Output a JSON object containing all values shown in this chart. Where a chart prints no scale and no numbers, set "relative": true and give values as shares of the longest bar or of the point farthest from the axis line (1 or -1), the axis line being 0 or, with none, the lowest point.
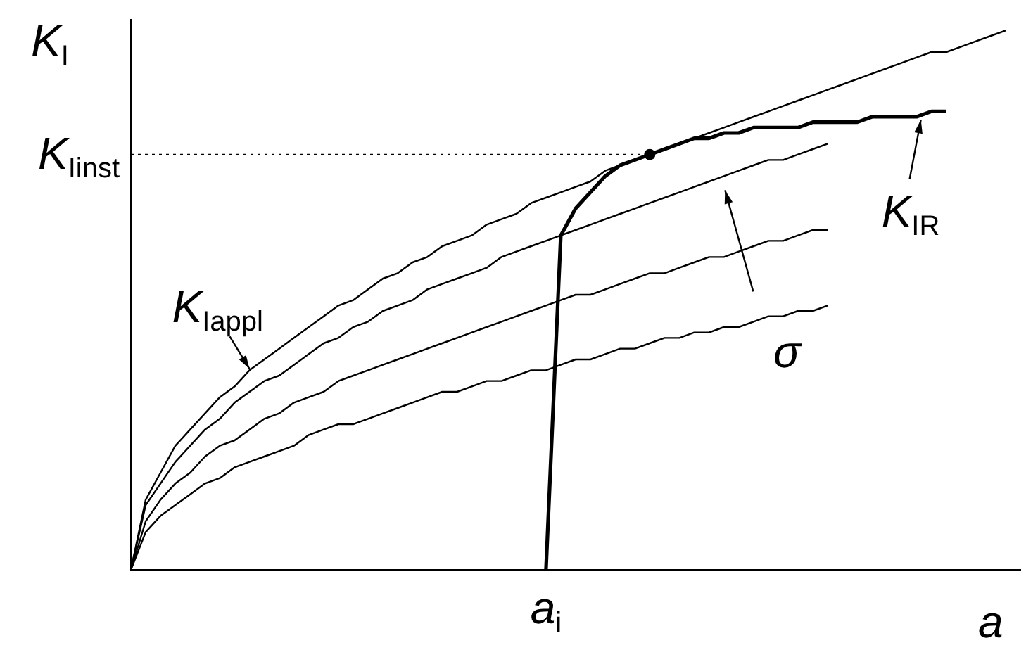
{
  "chart_data": {
    "type": "line",
    "relative": true,
    "ylabel": "K$_{I}$",
    "xlabel": "a",
    "marker": "none",
    "line_style": "solid",
    "categories": [
      null,
      null,
      null,
      null,
      null,
      null,
      null,
      null,
      null,
      null,
      null,
      null,
      null,
      null,
      null,
      null,
      null,
      null,
      null,
      null,
      null,
      null,
      null,
      null,
      null,
      null,
      null,
      null,
      null,
      null,
      null,
      null,
      null,
      null,
      null,
      null,
      null,
      null,
      null,
      null,
      null,
      null,
      null,
      null,
      null,
      null,
      null,
      null,
      null,
      null,
      null,
      null,
      null,
      null,
      null,
      null,
      null,
      null,
      null,
      null,
      null
    ],
    "series": [
      {
        "name": "K$_{Iappl}$",
        "color": "#000000",
        "values": [
          0,
          0.13,
          0.18,
          0.23,
          0.26,
          0.29,
          0.32,
          0.34,
          0.37,
          0.39,
          0.41,
          0.43,
          0.45,
          0.47,
          0.49,
          0.5,
          0.52,
          0.54,
          0.55,
          0.57,
          0.58,
          0.6,
          0.61,
          0.62,
          0.64,
          0.65,
          0.66,
          0.68,
          0.69,
          0.7,
          0.71,
          0.72,
          0.74,
          0.75,
          0.76,
          0.77,
          0.78,
          0.79,
          0.8,
          0.81,
          0.82,
          0.83,
          0.84,
          0.85,
          0.86,
          0.87,
          0.88,
          0.89,
          0.9,
          0.91,
          0.92,
          0.93,
          0.94,
          0.95,
          0.96,
          0.96,
          0.97,
          0.98,
          0.99,
          1,
          null
        ]
      },
      {
        "color": "#000000",
        "values": [
          0,
          0.12,
          0.16,
          0.2,
          0.23,
          0.26,
          0.28,
          0.31,
          0.33,
          0.35,
          0.36,
          0.38,
          0.4,
          0.42,
          0.43,
          0.45,
          0.46,
          0.48,
          0.49,
          0.5,
          0.52,
          0.53,
          0.54,
          0.55,
          0.56,
          0.58,
          0.59,
          0.6,
          0.61,
          0.62,
          0.63,
          0.64,
          0.65,
          0.66,
          0.67,
          0.68,
          0.69,
          0.7,
          0.71,
          0.72,
          0.73,
          0.74,
          0.75,
          0.76,
          0.76,
          0.77,
          0.78,
          0.79,
          null,
          null,
          null,
          null,
          null,
          null,
          null,
          null,
          null,
          null,
          null,
          null,
          null
        ]
      },
      {
        "color": "#000000",
        "values": [
          0,
          0.09,
          0.13,
          0.16,
          0.18,
          0.21,
          0.23,
          0.24,
          0.26,
          0.28,
          0.29,
          0.31,
          0.32,
          0.33,
          0.35,
          0.36,
          0.37,
          0.38,
          0.39,
          0.4,
          0.41,
          0.42,
          0.43,
          0.44,
          0.45,
          0.46,
          0.47,
          0.48,
          0.49,
          0.5,
          0.51,
          0.51,
          0.52,
          0.53,
          0.54,
          0.55,
          0.55,
          0.56,
          0.57,
          0.58,
          0.58,
          0.59,
          0.6,
          0.61,
          0.61,
          0.62,
          0.63,
          0.63,
          null,
          null,
          null,
          null,
          null,
          null,
          null,
          null,
          null,
          null,
          null,
          null,
          null
        ]
      },
      {
        "color": "#000000",
        "values": [
          0,
          0.07,
          0.1,
          0.12,
          0.14,
          0.16,
          0.17,
          0.19,
          0.2,
          0.21,
          0.22,
          0.23,
          0.25,
          0.26,
          0.27,
          0.27,
          0.28,
          0.29,
          0.3,
          0.31,
          0.32,
          0.33,
          0.33,
          0.34,
          0.35,
          0.35,
          0.36,
          0.37,
          0.37,
          0.38,
          0.39,
          0.39,
          0.4,
          0.41,
          0.41,
          0.42,
          0.43,
          0.43,
          0.44,
          0.44,
          0.45,
          0.45,
          0.46,
          0.47,
          0.47,
          0.48,
          0.48,
          0.49,
          null,
          null,
          null,
          null,
          null,
          null,
          null,
          null,
          null,
          null,
          null,
          null,
          null
        ]
      },
      {
        "name": "K$_{IR}$",
        "color": "#000000",
        "values": [
          null,
          null,
          null,
          null,
          null,
          null,
          null,
          null,
          null,
          null,
          null,
          null,
          null,
          null,
          null,
          null,
          null,
          null,
          null,
          null,
          null,
          null,
          null,
          null,
          null,
          null,
          null,
          null,
          0,
          0.62,
          0.67,
          0.7,
          0.73,
          0.75,
          0.76,
          0.77,
          0.78,
          0.79,
          0.8,
          0.8,
          0.81,
          0.81,
          0.82,
          0.82,
          0.82,
          0.82,
          0.83,
          0.83,
          0.83,
          0.83,
          0.84,
          0.84,
          0.84,
          0.84,
          0.85,
          0.85,
          null,
          null,
          null,
          null,
          null
        ]
      }
    ],
    "ref_lines": [
      {
        "axis": "y",
        "value": 0.77,
        "label": "K$_{Iinst}$",
        "line_style": "dotted"
      }
    ],
    "annotations": [
      "a$_{i}$",
      "σ"
    ]
  }
}
